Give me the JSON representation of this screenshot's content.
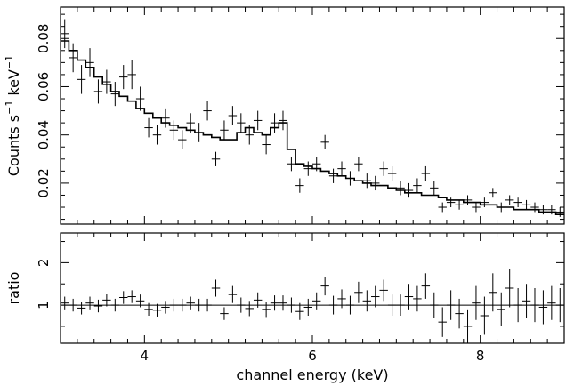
{
  "chart_data": [
    {
      "panel": "top",
      "type": "scatter",
      "ylabel": "Counts s",
      "ylabel_sup1": "−1",
      "ylabel_mid": " keV",
      "ylabel_sup2": "−1",
      "xlim": [
        3.0,
        9.0
      ],
      "ylim": [
        0.003,
        0.093
      ],
      "yticks": [
        0.02,
        0.04,
        0.06,
        0.08
      ],
      "ytick_labels": [
        "0.02",
        "0.04",
        "0.06",
        "0.08"
      ],
      "data": {
        "x": [
          3.05,
          3.15,
          3.25,
          3.35,
          3.45,
          3.55,
          3.65,
          3.75,
          3.85,
          3.95,
          4.05,
          4.15,
          4.25,
          4.35,
          4.45,
          4.55,
          4.65,
          4.75,
          4.85,
          4.95,
          5.05,
          5.15,
          5.25,
          5.35,
          5.45,
          5.55,
          5.65,
          5.75,
          5.85,
          5.95,
          6.05,
          6.15,
          6.25,
          6.35,
          6.45,
          6.55,
          6.65,
          6.75,
          6.85,
          6.95,
          7.05,
          7.15,
          7.25,
          7.35,
          7.45,
          7.55,
          7.65,
          7.75,
          7.85,
          7.95,
          8.05,
          8.15,
          8.25,
          8.35,
          8.45,
          8.55,
          8.65,
          8.75,
          8.85,
          8.95
        ],
        "y": [
          0.082,
          0.072,
          0.063,
          0.07,
          0.058,
          0.062,
          0.057,
          0.064,
          0.065,
          0.055,
          0.043,
          0.04,
          0.047,
          0.042,
          0.038,
          0.045,
          0.041,
          0.05,
          0.03,
          0.042,
          0.048,
          0.045,
          0.04,
          0.046,
          0.036,
          0.045,
          0.046,
          0.028,
          0.019,
          0.026,
          0.028,
          0.037,
          0.023,
          0.026,
          0.022,
          0.028,
          0.021,
          0.02,
          0.026,
          0.024,
          0.018,
          0.017,
          0.019,
          0.024,
          0.018,
          0.01,
          0.012,
          0.011,
          0.013,
          0.01,
          0.012,
          0.016,
          0.01,
          0.013,
          0.012,
          0.011,
          0.01,
          0.009,
          0.009,
          0.008
        ],
        "yerr": [
          0.006,
          0.006,
          0.006,
          0.006,
          0.005,
          0.005,
          0.005,
          0.005,
          0.006,
          0.005,
          0.004,
          0.004,
          0.004,
          0.004,
          0.004,
          0.004,
          0.004,
          0.004,
          0.003,
          0.004,
          0.004,
          0.004,
          0.004,
          0.004,
          0.004,
          0.004,
          0.004,
          0.003,
          0.003,
          0.003,
          0.003,
          0.003,
          0.003,
          0.003,
          0.003,
          0.003,
          0.003,
          0.003,
          0.003,
          0.003,
          0.003,
          0.003,
          0.003,
          0.003,
          0.003,
          0.002,
          0.002,
          0.002,
          0.002,
          0.002,
          0.002,
          0.002,
          0.002,
          0.002,
          0.002,
          0.002,
          0.002,
          0.002,
          0.002,
          0.002
        ]
      },
      "model": {
        "x": [
          3.0,
          3.1,
          3.2,
          3.3,
          3.4,
          3.5,
          3.6,
          3.7,
          3.8,
          3.9,
          4.0,
          4.1,
          4.2,
          4.3,
          4.4,
          4.5,
          4.6,
          4.7,
          4.8,
          4.9,
          5.0,
          5.1,
          5.2,
          5.3,
          5.4,
          5.5,
          5.6,
          5.7,
          5.8,
          5.9,
          6.0,
          6.1,
          6.2,
          6.3,
          6.4,
          6.5,
          6.6,
          6.7,
          6.8,
          6.9,
          7.0,
          7.1,
          7.2,
          7.3,
          7.4,
          7.5,
          7.6,
          7.7,
          7.8,
          7.9,
          8.0,
          8.1,
          8.2,
          8.3,
          8.4,
          8.5,
          8.6,
          8.7,
          8.8,
          8.9
        ],
        "y": [
          0.079,
          0.075,
          0.071,
          0.068,
          0.064,
          0.061,
          0.058,
          0.056,
          0.054,
          0.051,
          0.049,
          0.047,
          0.045,
          0.044,
          0.043,
          0.042,
          0.041,
          0.04,
          0.039,
          0.038,
          0.038,
          0.041,
          0.043,
          0.041,
          0.04,
          0.043,
          0.045,
          0.034,
          0.028,
          0.027,
          0.026,
          0.025,
          0.024,
          0.023,
          0.022,
          0.021,
          0.02,
          0.019,
          0.019,
          0.018,
          0.017,
          0.016,
          0.016,
          0.015,
          0.015,
          0.014,
          0.013,
          0.013,
          0.012,
          0.012,
          0.011,
          0.011,
          0.01,
          0.01,
          0.009,
          0.009,
          0.009,
          0.008,
          0.008,
          0.007
        ]
      }
    },
    {
      "panel": "bottom",
      "type": "scatter",
      "ylabel": "ratio",
      "xlabel": "channel energy (keV)",
      "xlim": [
        3.0,
        9.0
      ],
      "ylim": [
        0.1,
        2.7
      ],
      "xticks": [
        4,
        6,
        8
      ],
      "xtick_labels": [
        "4",
        "6",
        "8"
      ],
      "yticks": [
        1,
        2
      ],
      "ytick_labels": [
        "1",
        "2"
      ],
      "reference_line": 1.0,
      "data": {
        "x": [
          3.05,
          3.15,
          3.25,
          3.35,
          3.45,
          3.55,
          3.65,
          3.75,
          3.85,
          3.95,
          4.05,
          4.15,
          4.25,
          4.35,
          4.45,
          4.55,
          4.65,
          4.75,
          4.85,
          4.95,
          5.05,
          5.15,
          5.25,
          5.35,
          5.45,
          5.55,
          5.65,
          5.75,
          5.85,
          5.95,
          6.05,
          6.15,
          6.25,
          6.35,
          6.45,
          6.55,
          6.65,
          6.75,
          6.85,
          6.95,
          7.05,
          7.15,
          7.25,
          7.35,
          7.45,
          7.55,
          7.65,
          7.75,
          7.85,
          7.95,
          8.05,
          8.15,
          8.25,
          8.35,
          8.45,
          8.55,
          8.65,
          8.75,
          8.85,
          8.95
        ],
        "y": [
          1.05,
          1.0,
          0.93,
          1.05,
          0.98,
          1.12,
          1.0,
          1.18,
          1.2,
          1.1,
          0.9,
          0.88,
          0.95,
          1.0,
          1.0,
          1.05,
          1.0,
          1.0,
          1.4,
          0.8,
          1.25,
          1.0,
          0.92,
          1.12,
          0.9,
          1.05,
          1.05,
          1.0,
          0.85,
          0.95,
          1.1,
          1.45,
          1.0,
          1.15,
          1.0,
          1.3,
          1.1,
          1.2,
          1.35,
          1.0,
          1.0,
          1.2,
          1.15,
          1.45,
          1.0,
          0.6,
          1.0,
          0.8,
          0.5,
          1.05,
          0.75,
          1.3,
          0.9,
          1.4,
          1.0,
          1.1,
          1.0,
          0.95,
          1.05,
          1.0
        ],
        "yerr": [
          0.15,
          0.15,
          0.15,
          0.15,
          0.15,
          0.15,
          0.15,
          0.15,
          0.15,
          0.15,
          0.15,
          0.15,
          0.15,
          0.15,
          0.15,
          0.15,
          0.15,
          0.15,
          0.2,
          0.15,
          0.2,
          0.18,
          0.18,
          0.18,
          0.18,
          0.18,
          0.18,
          0.18,
          0.2,
          0.2,
          0.2,
          0.22,
          0.22,
          0.22,
          0.22,
          0.25,
          0.25,
          0.25,
          0.25,
          0.25,
          0.25,
          0.3,
          0.3,
          0.3,
          0.3,
          0.35,
          0.35,
          0.35,
          0.4,
          0.4,
          0.45,
          0.45,
          0.4,
          0.45,
          0.4,
          0.4,
          0.4,
          0.4,
          0.4,
          0.4
        ]
      }
    }
  ]
}
